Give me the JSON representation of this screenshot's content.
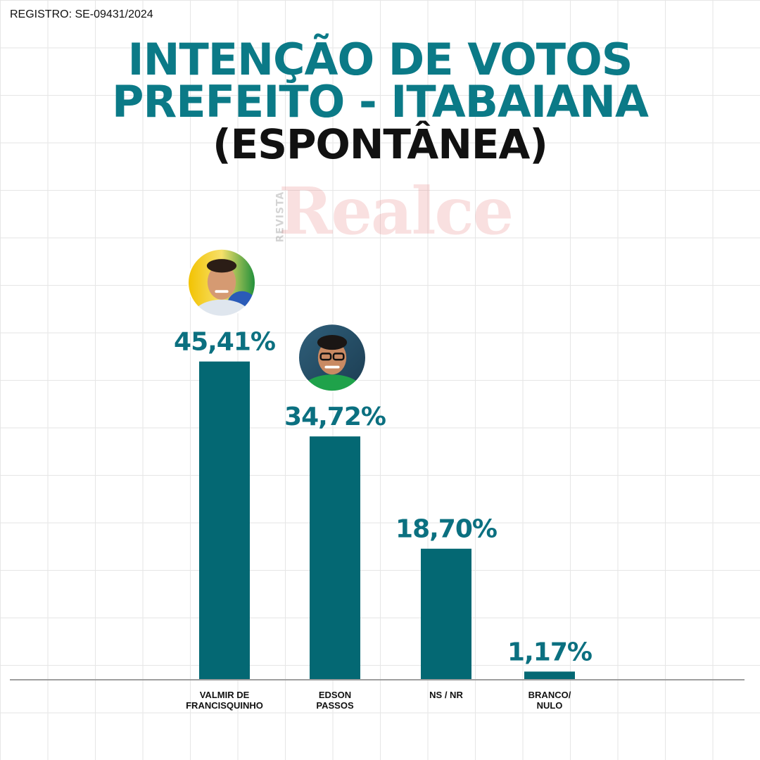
{
  "registro": "REGISTRO: SE-09431/2024",
  "title_line1": "INTENÇÃO DE VOTOS",
  "title_line2": "PREFEITO - ITABAIANA",
  "title_line3": "(ESPONTÂNEA)",
  "watermark": {
    "small": "REVISTA",
    "big": "Realce"
  },
  "colors": {
    "bar": "#046873",
    "title": "#0b7a87",
    "axis": "#9e9e9e"
  },
  "chart_data": {
    "type": "bar",
    "title": "INTENÇÃO DE VOTOS PREFEITO - ITABAIANA (ESPONTÂNEA)",
    "categories": [
      [
        "VALMIR DE",
        "FRANCISQUINHO"
      ],
      [
        "EDSON",
        "PASSOS"
      ],
      [
        "NS / NR"
      ],
      [
        "BRANCO/",
        "NULO"
      ]
    ],
    "values": [
      45.41,
      34.72,
      18.7,
      1.17
    ],
    "value_labels": [
      "45,41%",
      "34,72%",
      "18,70%",
      "1,17%"
    ],
    "ylim": [
      0,
      50
    ],
    "xlabel": "",
    "ylabel": "",
    "photos": [
      "candidate-photo",
      "candidate-photo",
      null,
      null
    ]
  }
}
